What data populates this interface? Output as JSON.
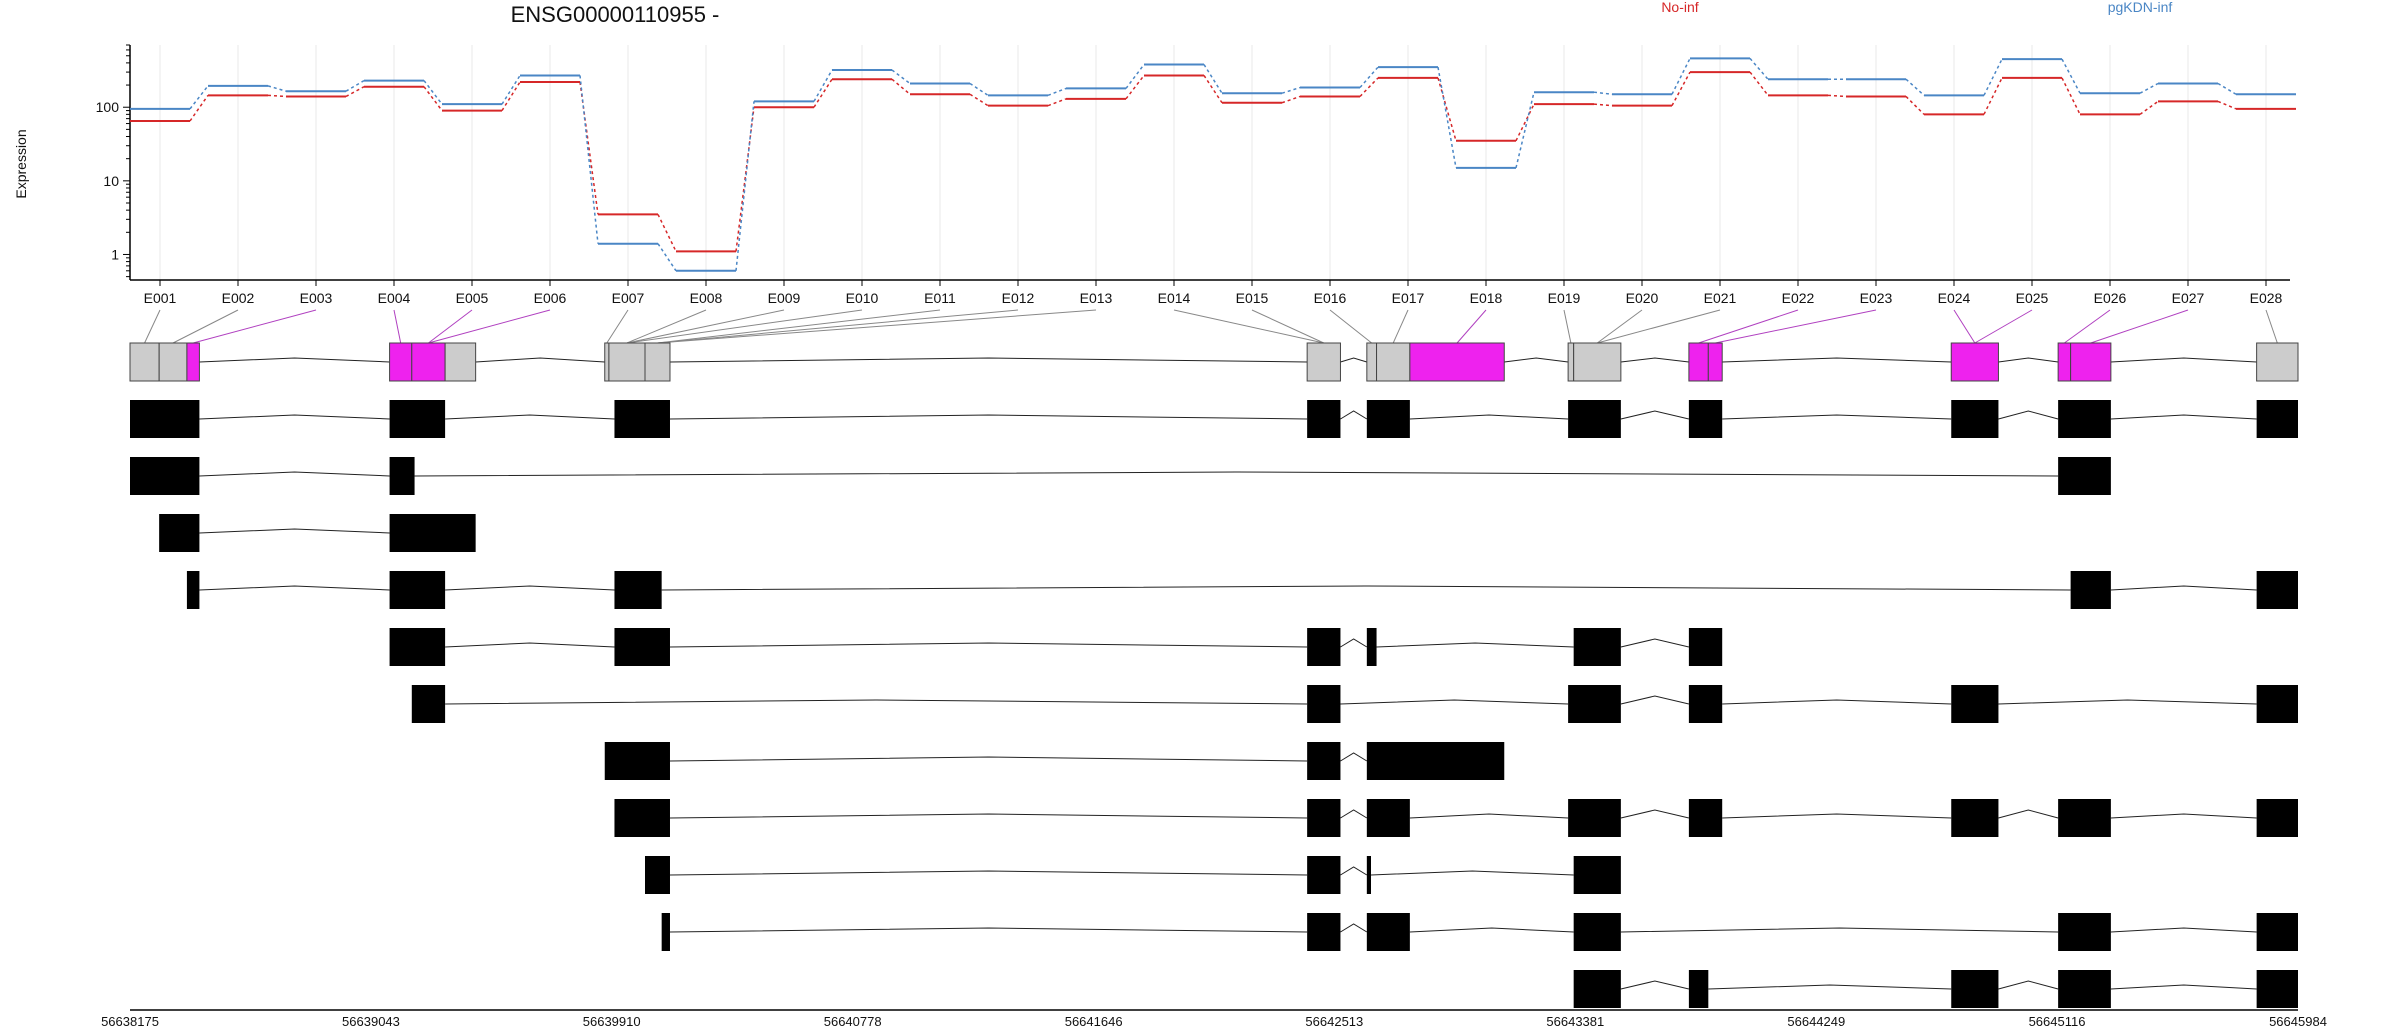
{
  "chart_data": {
    "type": "line",
    "title": "ENSG00000110955 -",
    "ylabel": "Expression",
    "yscale": "log",
    "yticks": [
      "1",
      "10",
      "100"
    ],
    "legend": "top-right",
    "grid": true,
    "colors": {
      "No-inf": "#d62728",
      "pgKDN-inf": "#4a86c5",
      "highlight": "#ee22ee"
    },
    "exons": [
      "E001",
      "E002",
      "E003",
      "E004",
      "E005",
      "E006",
      "E007",
      "E008",
      "E009",
      "E010",
      "E011",
      "E012",
      "E013",
      "E014",
      "E015",
      "E016",
      "E017",
      "E018",
      "E019",
      "E020",
      "E021",
      "E022",
      "E023",
      "E024",
      "E025",
      "E026",
      "E027",
      "E028"
    ],
    "series": [
      {
        "name": "No-inf",
        "values": [
          65,
          145,
          140,
          190,
          90,
          220,
          3.5,
          1.1,
          100,
          240,
          150,
          105,
          130,
          270,
          115,
          140,
          250,
          35,
          110,
          105,
          300,
          145,
          140,
          80,
          250,
          80,
          120,
          95
        ]
      },
      {
        "name": "pgKDN-inf",
        "values": [
          95,
          195,
          165,
          230,
          110,
          270,
          1.4,
          0.6,
          120,
          320,
          210,
          145,
          180,
          380,
          155,
          185,
          350,
          15,
          160,
          150,
          460,
          240,
          240,
          145,
          450,
          155,
          210,
          150
        ]
      }
    ],
    "genomic_ticks": [
      "56638175",
      "56639043",
      "56639910",
      "56640778",
      "56641646",
      "56642513",
      "56643381",
      "56644249",
      "56645116",
      "56645984"
    ],
    "gene_range": [
      56638175,
      56645984
    ],
    "exon_model": [
      {
        "start": 56638175,
        "end": 56638280,
        "highlight": false
      },
      {
        "start": 56638280,
        "end": 56638380,
        "highlight": false
      },
      {
        "start": 56638380,
        "end": 56638425,
        "highlight": true
      },
      {
        "start": 56639110,
        "end": 56639190,
        "highlight": true
      },
      {
        "start": 56639190,
        "end": 56639310,
        "highlight": true
      },
      {
        "start": 56639310,
        "end": 56639420,
        "highlight": false
      },
      {
        "start": 56639885,
        "end": 56639900,
        "highlight": false
      },
      {
        "start": 56639900,
        "end": 56640030,
        "highlight": false
      },
      {
        "start": 56640030,
        "end": 56640120,
        "highlight": false
      },
      {
        "start": 56642415,
        "end": 56642535,
        "highlight": false
      },
      {
        "start": 56642630,
        "end": 56642665,
        "highlight": false
      },
      {
        "start": 56642665,
        "end": 56642785,
        "highlight": false
      },
      {
        "start": 56642785,
        "end": 56643125,
        "highlight": true
      },
      {
        "start": 56643355,
        "end": 56643375,
        "highlight": false
      },
      {
        "start": 56643375,
        "end": 56643545,
        "highlight": false
      },
      {
        "start": 56643790,
        "end": 56643860,
        "highlight": true
      },
      {
        "start": 56643860,
        "end": 56643910,
        "highlight": true
      },
      {
        "start": 56644735,
        "end": 56644905,
        "highlight": true
      },
      {
        "start": 56645120,
        "end": 56645165,
        "highlight": true
      },
      {
        "start": 56645165,
        "end": 56645310,
        "highlight": true
      },
      {
        "start": 56645835,
        "end": 56645984,
        "highlight": false
      }
    ],
    "exon_links": [
      {
        "exon": "E001",
        "segment": 0
      },
      {
        "exon": "E002",
        "segment": 1
      },
      {
        "exon": "E003",
        "segment": 2
      },
      {
        "exon": "E004",
        "segment": 3
      },
      {
        "exon": "E005",
        "segment": 4
      },
      {
        "exon": "E006",
        "segment": 4
      },
      {
        "exon": "E007",
        "segment": 6
      },
      {
        "exon": "E008",
        "segment": 7
      },
      {
        "exon": "E009",
        "segment": 7
      },
      {
        "exon": "E010",
        "segment": 7
      },
      {
        "exon": "E011",
        "segment": 8
      },
      {
        "exon": "E012",
        "segment": 8
      },
      {
        "exon": "E013",
        "segment": 8
      },
      {
        "exon": "E014",
        "segment": 9
      },
      {
        "exon": "E015",
        "segment": 9
      },
      {
        "exon": "E016",
        "segment": 10
      },
      {
        "exon": "E017",
        "segment": 11
      },
      {
        "exon": "E018",
        "segment": 12
      },
      {
        "exon": "E019",
        "segment": 13
      },
      {
        "exon": "E020",
        "segment": 14
      },
      {
        "exon": "E021",
        "segment": 14
      },
      {
        "exon": "E022",
        "segment": 15
      },
      {
        "exon": "E023",
        "segment": 16
      },
      {
        "exon": "E024",
        "segment": 17
      },
      {
        "exon": "E025",
        "segment": 17
      },
      {
        "exon": "E026",
        "segment": 18
      },
      {
        "exon": "E027",
        "segment": 19
      },
      {
        "exon": "E028",
        "segment": 20
      }
    ],
    "transcripts": [
      [
        [
          56638175,
          56638425
        ],
        [
          56639110,
          56639310
        ],
        [
          56639920,
          56640120
        ],
        [
          56642415,
          56642535
        ],
        [
          56642630,
          56642785
        ],
        [
          56643355,
          56643545
        ],
        [
          56643790,
          56643910
        ],
        [
          56644735,
          56644905
        ],
        [
          56645120,
          56645310
        ],
        [
          56645835,
          56645984
        ]
      ],
      [
        [
          56638175,
          56638425
        ],
        [
          56639110,
          56639200
        ],
        [
          56645120,
          56645310
        ]
      ],
      [
        [
          56638280,
          56638425
        ],
        [
          56639110,
          56639420
        ]
      ],
      [
        [
          56638380,
          56638425
        ],
        [
          56639110,
          56639310
        ],
        [
          56639920,
          56640090
        ],
        [
          56645165,
          56645310
        ],
        [
          56645835,
          56645984
        ]
      ],
      [
        [
          56639110,
          56639310
        ],
        [
          56639920,
          56640120
        ],
        [
          56642415,
          56642535
        ],
        [
          56642630,
          56642665
        ],
        [
          56643375,
          56643545
        ],
        [
          56643790,
          56643910
        ]
      ],
      [
        [
          56639190,
          56639310
        ],
        [
          56642415,
          56642535
        ],
        [
          56643355,
          56643545
        ],
        [
          56643790,
          56643910
        ],
        [
          56644735,
          56644905
        ],
        [
          56645835,
          56645984
        ]
      ],
      [
        [
          56639885,
          56640120
        ],
        [
          56642415,
          56642535
        ],
        [
          56642630,
          56643125
        ]
      ],
      [
        [
          56639920,
          56640120
        ],
        [
          56642415,
          56642535
        ],
        [
          56642630,
          56642785
        ],
        [
          56643355,
          56643545
        ],
        [
          56643790,
          56643910
        ],
        [
          56644735,
          56644905
        ],
        [
          56645120,
          56645310
        ],
        [
          56645835,
          56645984
        ]
      ],
      [
        [
          56640030,
          56640120
        ],
        [
          56642415,
          56642535
        ],
        [
          56642630,
          56642645
        ],
        [
          56643375,
          56643545
        ]
      ],
      [
        [
          56640090,
          56640120
        ],
        [
          56642415,
          56642535
        ],
        [
          56642630,
          56642785
        ],
        [
          56643375,
          56643545
        ],
        [
          56645120,
          56645310
        ],
        [
          56645835,
          56645984
        ]
      ],
      [
        [
          56643375,
          56643545
        ],
        [
          56643790,
          56643860
        ],
        [
          56644735,
          56644905
        ],
        [
          56645120,
          56645310
        ],
        [
          56645835,
          56645984
        ]
      ]
    ]
  }
}
